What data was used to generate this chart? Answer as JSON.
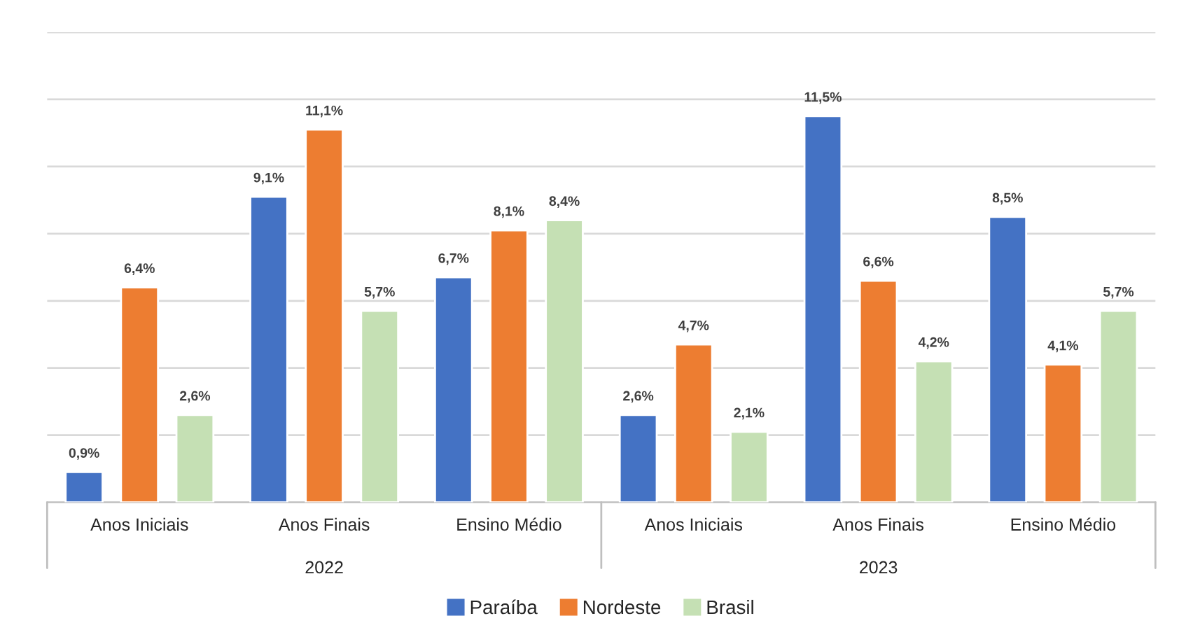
{
  "chart_data": {
    "type": "bar",
    "categories": [
      "Anos Iniciais",
      "Anos Finais",
      "Ensino Médio",
      "Anos Iniciais",
      "Anos Finais",
      "Ensino Médio"
    ],
    "series": [
      {
        "name": "Paraíba",
        "color": "#4472c4",
        "values": [
          0.9,
          9.1,
          6.7,
          2.6,
          11.5,
          8.5
        ],
        "value_labels": [
          "0,9%",
          "9,1%",
          "6,7%",
          "2,6%",
          "11,5%",
          "8,5%"
        ]
      },
      {
        "name": "Nordeste",
        "color": "#ed7d31",
        "values": [
          6.4,
          11.1,
          8.1,
          4.7,
          6.6,
          4.1
        ],
        "value_labels": [
          "6,4%",
          "11,1%",
          "8,1%",
          "4,7%",
          "6,6%",
          "4,1%"
        ]
      },
      {
        "name": "Brasil",
        "color": "#c5e0b4",
        "values": [
          2.6,
          5.7,
          8.4,
          2.1,
          4.2,
          5.7
        ],
        "value_labels": [
          "2,6%",
          "5,7%",
          "8,4%",
          "2,1%",
          "4,2%",
          "5,7%"
        ]
      }
    ],
    "annotations": [
      "2022",
      "2023"
    ],
    "ylim": [
      0,
      14
    ],
    "yticks": [
      {
        "value": 0,
        "label": null
      },
      {
        "value": 2,
        "label": null
      },
      {
        "value": 4,
        "label": null
      },
      {
        "value": 6,
        "label": null
      },
      {
        "value": 8,
        "label": null
      },
      {
        "value": 10,
        "label": null
      },
      {
        "value": 12,
        "label": null
      },
      {
        "value": 14,
        "label": null
      }
    ],
    "tick_labels": "x",
    "grid": "y",
    "legend": "bottom"
  }
}
